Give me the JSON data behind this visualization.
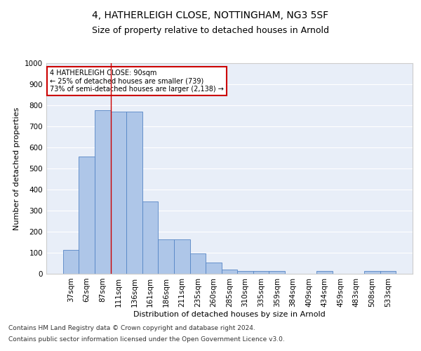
{
  "title1": "4, HATHERLEIGH CLOSE, NOTTINGHAM, NG3 5SF",
  "title2": "Size of property relative to detached houses in Arnold",
  "xlabel": "Distribution of detached houses by size in Arnold",
  "ylabel": "Number of detached properties",
  "categories": [
    "37sqm",
    "62sqm",
    "87sqm",
    "111sqm",
    "136sqm",
    "161sqm",
    "186sqm",
    "211sqm",
    "235sqm",
    "260sqm",
    "285sqm",
    "310sqm",
    "335sqm",
    "359sqm",
    "384sqm",
    "409sqm",
    "434sqm",
    "459sqm",
    "483sqm",
    "508sqm",
    "533sqm"
  ],
  "values": [
    112,
    557,
    778,
    770,
    770,
    342,
    165,
    165,
    97,
    55,
    20,
    15,
    15,
    12,
    0,
    0,
    12,
    0,
    0,
    12,
    12
  ],
  "bar_color": "#aec6e8",
  "bar_edge_color": "#5585c5",
  "vline_x": 2.5,
  "vline_color": "#cc0000",
  "ylim": [
    0,
    1000
  ],
  "yticks": [
    0,
    100,
    200,
    300,
    400,
    500,
    600,
    700,
    800,
    900,
    1000
  ],
  "annotation_text": "4 HATHERLEIGH CLOSE: 90sqm\n← 25% of detached houses are smaller (739)\n73% of semi-detached houses are larger (2,138) →",
  "annotation_box_color": "#ffffff",
  "annotation_box_edge": "#cc0000",
  "footer1": "Contains HM Land Registry data © Crown copyright and database right 2024.",
  "footer2": "Contains public sector information licensed under the Open Government Licence v3.0.",
  "bg_color": "#ffffff",
  "plot_bg_color": "#e8eef8",
  "grid_color": "#ffffff",
  "title1_fontsize": 10,
  "title2_fontsize": 9,
  "axis_fontsize": 8,
  "tick_fontsize": 7.5,
  "footer_fontsize": 6.5
}
